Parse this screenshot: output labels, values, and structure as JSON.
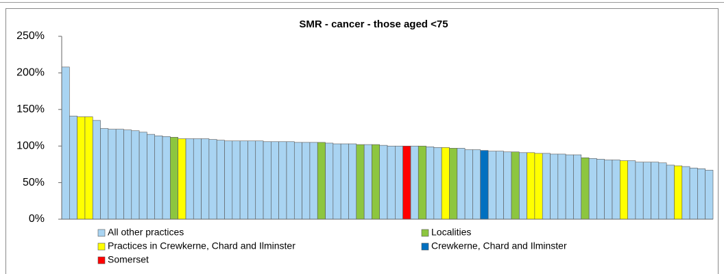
{
  "chart_data": {
    "type": "bar",
    "title": "SMR - cancer - those aged <75",
    "ylim": [
      0,
      250
    ],
    "yticks": [
      {
        "value": 0,
        "label": "0%"
      },
      {
        "value": 50,
        "label": "50%"
      },
      {
        "value": 100,
        "label": "100%"
      },
      {
        "value": 150,
        "label": "150%"
      },
      {
        "value": 200,
        "label": "200%"
      },
      {
        "value": 250,
        "label": "250%"
      }
    ],
    "grid": false,
    "series": [
      {
        "name": "All other practices",
        "color": "#a9d4f2",
        "values": [
          208,
          141,
          null,
          null,
          135,
          124,
          123,
          123,
          122,
          121,
          119,
          116,
          114,
          113,
          null,
          null,
          110,
          110,
          110,
          109,
          108,
          107,
          107,
          107,
          107,
          107,
          106,
          106,
          106,
          106,
          105,
          105,
          105,
          null,
          104,
          103,
          103,
          103,
          null,
          102,
          null,
          101,
          100,
          100,
          null,
          100,
          null,
          99,
          98,
          null,
          null,
          97,
          95,
          95,
          null,
          93,
          93,
          92,
          null,
          91,
          null,
          null,
          90,
          89,
          89,
          88,
          88,
          null,
          83,
          82,
          81,
          81,
          null,
          80,
          78,
          78,
          78,
          77,
          74,
          null,
          72,
          70,
          69,
          67
        ]
      },
      {
        "name": "Localities",
        "color": "#8dc63f",
        "values": [
          null,
          null,
          null,
          null,
          null,
          null,
          null,
          null,
          null,
          null,
          null,
          null,
          null,
          null,
          112,
          null,
          null,
          null,
          null,
          null,
          null,
          null,
          null,
          null,
          null,
          null,
          null,
          null,
          null,
          null,
          null,
          null,
          null,
          105,
          null,
          null,
          null,
          null,
          102,
          null,
          102,
          null,
          null,
          null,
          null,
          null,
          100,
          null,
          null,
          null,
          97,
          null,
          null,
          null,
          null,
          null,
          null,
          null,
          92,
          null,
          null,
          null,
          null,
          null,
          null,
          null,
          null,
          84,
          null,
          null,
          null,
          null,
          null,
          null,
          null,
          null,
          null,
          null,
          null,
          null,
          null,
          null,
          null,
          null
        ]
      },
      {
        "name": "Practices in Crewkerne, Chard and Ilminster",
        "color": "#ffff00",
        "values": [
          null,
          null,
          140,
          140,
          null,
          null,
          null,
          null,
          null,
          null,
          null,
          null,
          null,
          null,
          null,
          110,
          null,
          null,
          null,
          null,
          null,
          null,
          null,
          null,
          null,
          null,
          null,
          null,
          null,
          null,
          null,
          null,
          null,
          null,
          null,
          null,
          null,
          null,
          null,
          null,
          null,
          null,
          null,
          null,
          null,
          null,
          null,
          null,
          null,
          98,
          null,
          null,
          null,
          null,
          null,
          null,
          null,
          null,
          null,
          null,
          91,
          90,
          null,
          null,
          null,
          null,
          null,
          null,
          null,
          null,
          null,
          null,
          80,
          null,
          null,
          null,
          null,
          null,
          null,
          73,
          null,
          null,
          null,
          null
        ]
      },
      {
        "name": "Crewkerne, Chard and Ilminster",
        "color": "#0070c0",
        "values": [
          null,
          null,
          null,
          null,
          null,
          null,
          null,
          null,
          null,
          null,
          null,
          null,
          null,
          null,
          null,
          null,
          null,
          null,
          null,
          null,
          null,
          null,
          null,
          null,
          null,
          null,
          null,
          null,
          null,
          null,
          null,
          null,
          null,
          null,
          null,
          null,
          null,
          null,
          null,
          null,
          null,
          null,
          null,
          null,
          null,
          null,
          null,
          null,
          null,
          null,
          null,
          null,
          null,
          null,
          94,
          null,
          null,
          null,
          null,
          null,
          null,
          null,
          null,
          null,
          null,
          null,
          null,
          null,
          null,
          null,
          null,
          null,
          null,
          null,
          null,
          null,
          null,
          null,
          null,
          null,
          null,
          null,
          null,
          null
        ]
      },
      {
        "name": "Somerset",
        "color": "#ff0000",
        "values": [
          null,
          null,
          null,
          null,
          null,
          null,
          null,
          null,
          null,
          null,
          null,
          null,
          null,
          null,
          null,
          null,
          null,
          null,
          null,
          null,
          null,
          null,
          null,
          null,
          null,
          null,
          null,
          null,
          null,
          null,
          null,
          null,
          null,
          null,
          null,
          null,
          null,
          null,
          null,
          null,
          null,
          null,
          null,
          null,
          100,
          null,
          null,
          null,
          null,
          null,
          null,
          null,
          null,
          null,
          null,
          null,
          null,
          null,
          null,
          null,
          null,
          null,
          null,
          null,
          null,
          null,
          null,
          null,
          null,
          null,
          null,
          null,
          null,
          null,
          null,
          null,
          null,
          null,
          null,
          null,
          null,
          null,
          null,
          null
        ]
      }
    ]
  }
}
